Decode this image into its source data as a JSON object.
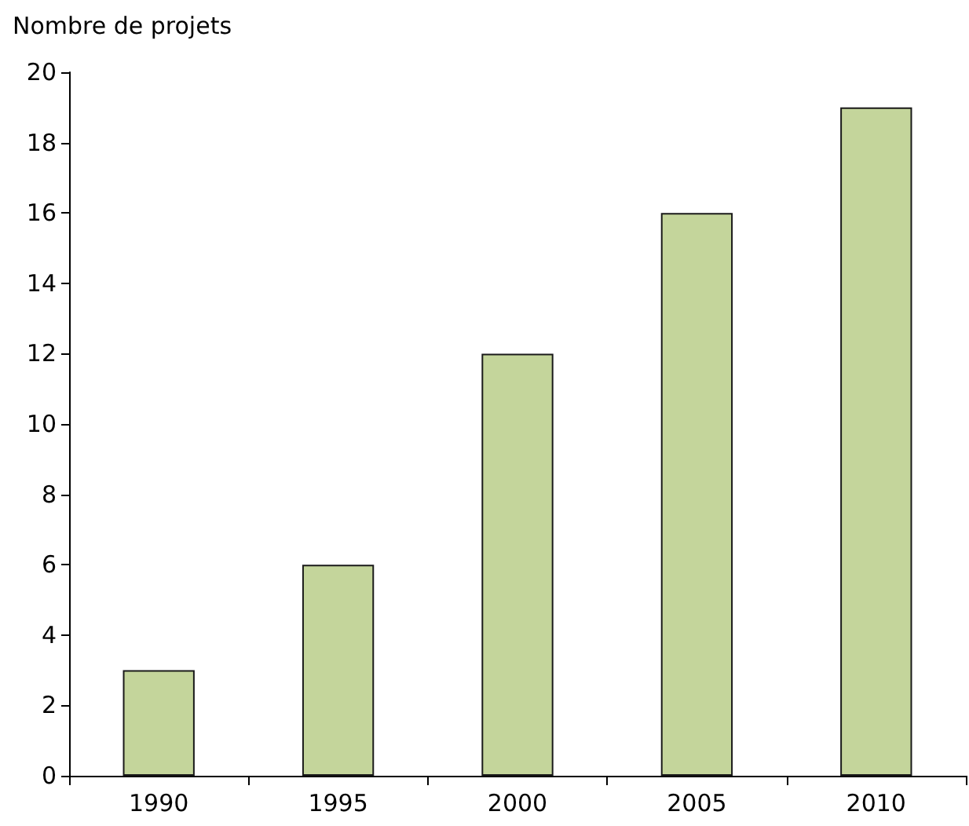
{
  "chart_data": {
    "type": "bar",
    "ylabel": "Nombre de projets",
    "categories": [
      "1990",
      "1995",
      "2000",
      "2005",
      "2010"
    ],
    "series": [
      {
        "color": "#c4d59b",
        "values": [
          3,
          6,
          12,
          16,
          19
        ]
      }
    ],
    "ylim": [
      0,
      20
    ],
    "yticks": [
      0,
      2,
      4,
      6,
      8,
      10,
      12,
      14,
      16,
      18,
      20
    ]
  }
}
